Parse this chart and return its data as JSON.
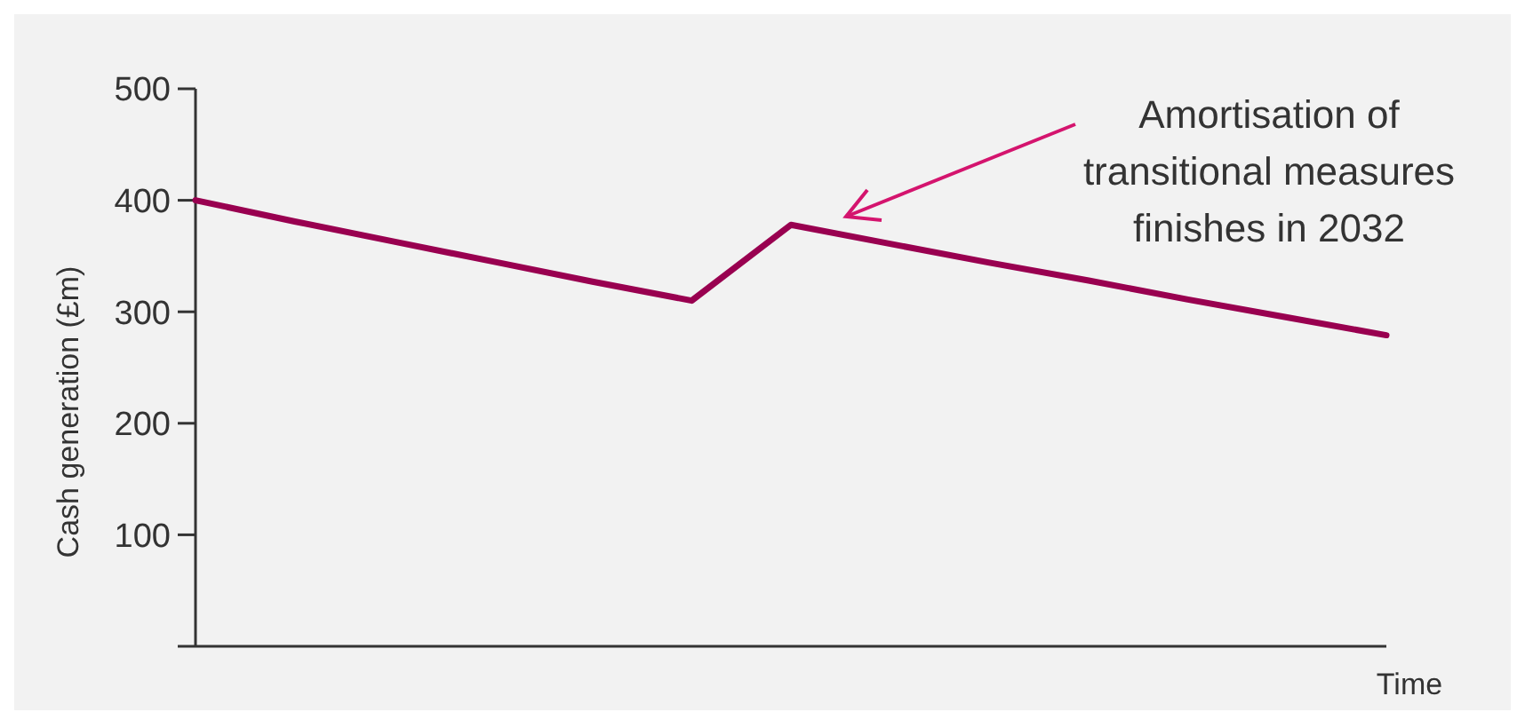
{
  "chart_data": {
    "type": "line",
    "xlabel": "Time",
    "ylabel": "Cash generation (£m)",
    "categories": [
      null,
      null,
      null,
      null,
      null,
      null,
      null,
      null,
      null,
      null,
      null,
      null,
      null
    ],
    "series": [
      {
        "color": "#990050",
        "values": [
          400,
          381,
          363,
          345,
          327,
          310,
          378,
          361,
          344,
          328,
          311,
          295,
          279
        ]
      }
    ],
    "ylim": [
      0,
      500
    ],
    "yticks": [
      100,
      200,
      300,
      400,
      500
    ],
    "annotations": [
      "Amortisation of\ntransitional measures\nfinishes in 2032"
    ],
    "grid": false,
    "marker": "none",
    "line_style": "solid"
  }
}
